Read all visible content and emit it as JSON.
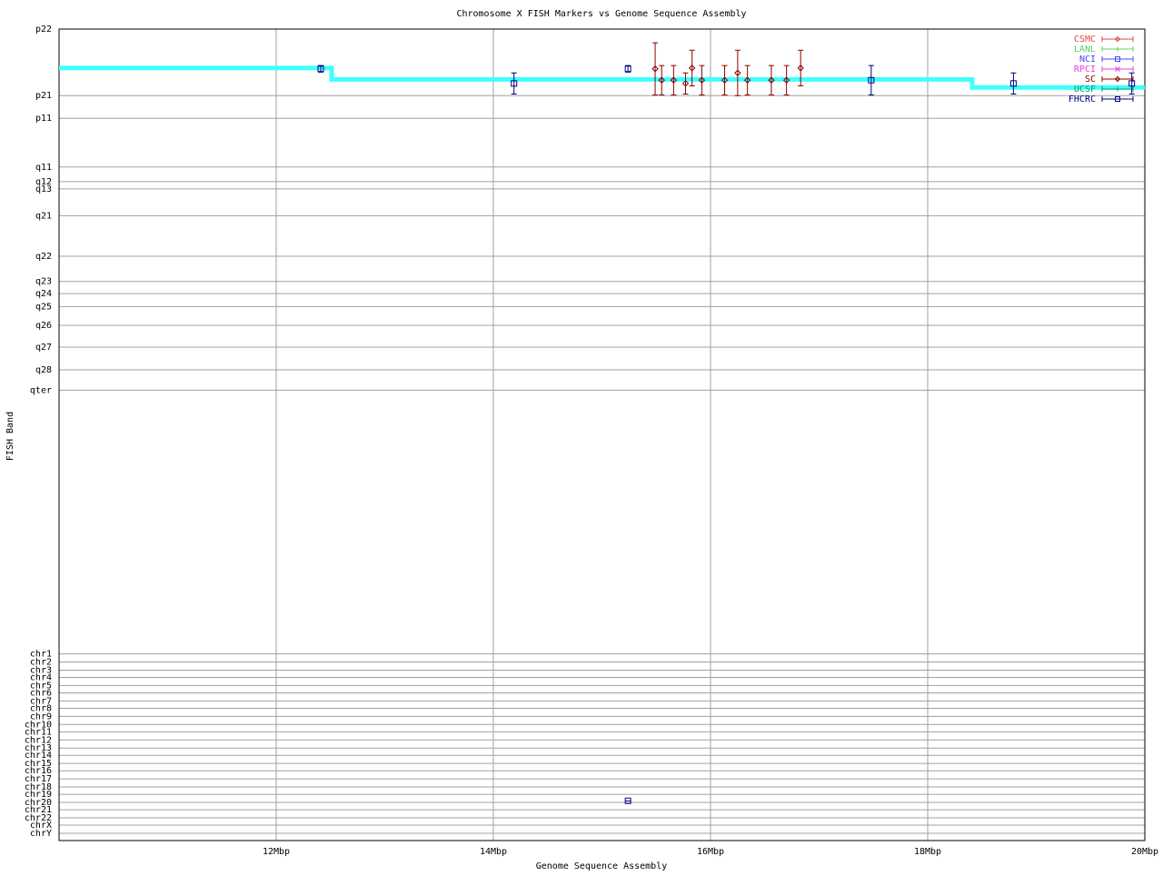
{
  "chart_data": {
    "type": "scatter",
    "title": "Chromosome X FISH Markers vs Genome Sequence Assembly",
    "x_label": "Genome Sequence Assembly",
    "y_label": "FISH Band",
    "xlim": [
      10,
      20
    ],
    "ylim": [
      100,
      0
    ],
    "xticks": [
      {
        "value": 12,
        "label": "12Mbp"
      },
      {
        "value": 14,
        "label": "14Mbp"
      },
      {
        "value": 16,
        "label": "16Mbp"
      },
      {
        "value": 18,
        "label": "18Mbp"
      },
      {
        "value": 20,
        "label": "20Mbp"
      }
    ],
    "yticks": [
      {
        "value": 0,
        "label": "p22"
      },
      {
        "value": 8.2,
        "label": "p21"
      },
      {
        "value": 11.0,
        "label": "p11"
      },
      {
        "value": 17.0,
        "label": "q11"
      },
      {
        "value": 18.8,
        "label": "q12"
      },
      {
        "value": 19.7,
        "label": "q13"
      },
      {
        "value": 23.0,
        "label": "q21"
      },
      {
        "value": 28.0,
        "label": "q22"
      },
      {
        "value": 31.1,
        "label": "q23"
      },
      {
        "value": 32.6,
        "label": "q24"
      },
      {
        "value": 34.2,
        "label": "q25"
      },
      {
        "value": 36.5,
        "label": "q26"
      },
      {
        "value": 39.2,
        "label": "q27"
      },
      {
        "value": 42.0,
        "label": "q28"
      },
      {
        "value": 44.5,
        "label": "qter"
      },
      {
        "value": 77.0,
        "label": "chr1"
      },
      {
        "value": 78.0,
        "label": "chr2"
      },
      {
        "value": 79.0,
        "label": "chr3"
      },
      {
        "value": 79.9,
        "label": "chr4"
      },
      {
        "value": 80.9,
        "label": "chr5"
      },
      {
        "value": 81.8,
        "label": "chr6"
      },
      {
        "value": 82.8,
        "label": "chr7"
      },
      {
        "value": 83.7,
        "label": "chr8"
      },
      {
        "value": 84.7,
        "label": "chr9"
      },
      {
        "value": 85.7,
        "label": "chr10"
      },
      {
        "value": 86.6,
        "label": "chr11"
      },
      {
        "value": 87.6,
        "label": "chr12"
      },
      {
        "value": 88.6,
        "label": "chr13"
      },
      {
        "value": 89.5,
        "label": "chr14"
      },
      {
        "value": 90.5,
        "label": "chr15"
      },
      {
        "value": 91.4,
        "label": "chr16"
      },
      {
        "value": 92.4,
        "label": "chr17"
      },
      {
        "value": 93.4,
        "label": "chr18"
      },
      {
        "value": 94.3,
        "label": "chr19"
      },
      {
        "value": 95.3,
        "label": "chr20"
      },
      {
        "value": 96.2,
        "label": "chr21"
      },
      {
        "value": 97.2,
        "label": "chr22"
      },
      {
        "value": 98.1,
        "label": "chrX"
      },
      {
        "value": 99.1,
        "label": "chrY"
      }
    ],
    "grid": true,
    "legend": "top-right",
    "series": [
      {
        "color": "#40ffff",
        "line": true,
        "x": [
          10,
          12.51,
          12.51,
          18.41,
          18.41,
          20
        ],
        "values": [
          4.8,
          4.8,
          6.2,
          6.2,
          7.2,
          7.2
        ]
      },
      {
        "name": "CSMC",
        "color": "#e04848",
        "marker": "diamond",
        "x": [],
        "values": [],
        "errors": []
      },
      {
        "name": "LANL",
        "color": "#60d060",
        "marker": "plus",
        "x": [],
        "values": [],
        "errors": []
      },
      {
        "name": "NCI",
        "color": "#4848ff",
        "marker": "square",
        "x": [],
        "values": [],
        "errors": []
      },
      {
        "name": "RPCI",
        "color": "#e040e0",
        "marker": "cross",
        "x": [],
        "values": [],
        "errors": []
      },
      {
        "name": "SC",
        "color": "#8b0000",
        "marker": "diamond",
        "x": [
          15.49,
          15.55,
          15.66,
          15.77,
          15.83,
          15.92,
          16.13,
          16.25,
          16.34,
          16.56,
          16.7,
          16.83
        ],
        "values": [
          4.9,
          6.3,
          6.3,
          6.7,
          4.8,
          6.3,
          6.3,
          5.4,
          6.3,
          6.3,
          6.3,
          4.8
        ],
        "errors": [
          3.2,
          1.8,
          1.8,
          1.3,
          2.2,
          1.8,
          1.8,
          2.8,
          1.8,
          1.8,
          1.8,
          2.2
        ]
      },
      {
        "name": "UCSF",
        "color": "#00a060",
        "marker": "plus",
        "x": [],
        "values": [],
        "errors": []
      },
      {
        "name": "FHCRC",
        "color": "#000080",
        "marker": "square",
        "x": [
          12.41,
          14.19,
          15.24,
          17.48,
          18.79,
          19.88,
          15.24
        ],
        "values": [
          4.9,
          6.7,
          4.9,
          6.3,
          6.7,
          6.7,
          95.1
        ],
        "errors": [
          0.4,
          1.3,
          0.4,
          1.8,
          1.3,
          1.3,
          0
        ]
      }
    ]
  }
}
